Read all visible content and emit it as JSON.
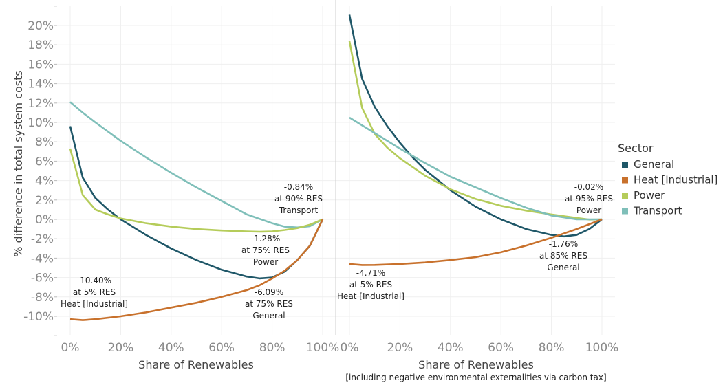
{
  "chart_data": {
    "type": "line",
    "ylabel": "% difference in total system costs",
    "yticks": [
      "-10%",
      "-8%",
      "-6%",
      "-4%",
      "-2%",
      "0%",
      "2%",
      "4%",
      "6%",
      "8%",
      "10%",
      "12%",
      "14%",
      "16%",
      "18%",
      "20%"
    ],
    "ylim": [
      -12,
      22
    ],
    "grid": true,
    "legend": {
      "title": "Sector",
      "placement": "right",
      "entries": [
        {
          "name": "General",
          "color": "#1f5768"
        },
        {
          "name": "Heat [Industrial]",
          "color": "#c8712c"
        },
        {
          "name": "Power",
          "color": "#b5cc5a"
        },
        {
          "name": "Transport",
          "color": "#7fbfb9"
        }
      ]
    },
    "panels": [
      {
        "xlabel": "Share of Renewables",
        "subtitle": "",
        "xticks": [
          "0%",
          "20%",
          "40%",
          "60%",
          "80%",
          "100%"
        ],
        "xlim": [
          0,
          100
        ],
        "series": [
          {
            "name": "Transport",
            "color": "#7fbfb9",
            "x": [
              0,
              5,
              10,
              20,
              30,
              40,
              50,
              60,
              70,
              80,
              85,
              90,
              95,
              100
            ],
            "values": [
              12.1,
              11.0,
              10.0,
              8.1,
              6.4,
              4.8,
              3.3,
              1.9,
              0.5,
              -0.4,
              -0.75,
              -0.84,
              -0.7,
              0
            ]
          },
          {
            "name": "General",
            "color": "#1f5768",
            "x": [
              0,
              5,
              10,
              15,
              20,
              25,
              30,
              40,
              50,
              60,
              70,
              75,
              80,
              85,
              90,
              95,
              100
            ],
            "values": [
              9.6,
              4.3,
              2.2,
              1.0,
              0.0,
              -0.8,
              -1.6,
              -3.0,
              -4.2,
              -5.2,
              -5.9,
              -6.09,
              -6.0,
              -5.4,
              -4.2,
              -2.7,
              0
            ]
          },
          {
            "name": "Power",
            "color": "#b5cc5a",
            "x": [
              0,
              5,
              10,
              15,
              20,
              30,
              40,
              50,
              60,
              70,
              75,
              80,
              85,
              90,
              95,
              100
            ],
            "values": [
              7.3,
              2.5,
              1.0,
              0.5,
              0.1,
              -0.4,
              -0.75,
              -1.0,
              -1.15,
              -1.25,
              -1.28,
              -1.25,
              -1.1,
              -0.9,
              -0.55,
              0
            ]
          },
          {
            "name": "Heat [Industrial]",
            "color": "#c8712c",
            "x": [
              0,
              5,
              10,
              20,
              30,
              40,
              50,
              60,
              70,
              75,
              80,
              85,
              90,
              95,
              100
            ],
            "values": [
              -10.3,
              -10.4,
              -10.3,
              -10.0,
              -9.6,
              -9.1,
              -8.6,
              -8.0,
              -7.3,
              -6.8,
              -6.1,
              -5.3,
              -4.2,
              -2.7,
              0
            ]
          }
        ],
        "annotations": [
          {
            "lines": [
              "-0.84%",
              "at 90% RES",
              "Transport"
            ]
          },
          {
            "lines": [
              "-1.28%",
              "at 75% RES",
              "Power"
            ]
          },
          {
            "lines": [
              "-10.40%",
              "at 5% RES",
              "Heat [Industrial]"
            ]
          },
          {
            "lines": [
              "-6.09%",
              "at 75% RES",
              "General"
            ]
          }
        ]
      },
      {
        "xlabel": "Share of Renewables",
        "subtitle": "[including negative environmental externalities via carbon tax]",
        "xticks": [
          "0%",
          "20%",
          "40%",
          "60%",
          "80%",
          "100%"
        ],
        "xlim": [
          0,
          100
        ],
        "series": [
          {
            "name": "General",
            "color": "#1f5768",
            "x": [
              0,
              5,
              10,
              15,
              20,
              25,
              30,
              40,
              50,
              60,
              70,
              80,
              85,
              90,
              95,
              100
            ],
            "values": [
              21.1,
              14.5,
              11.6,
              9.6,
              7.9,
              6.4,
              5.1,
              3.0,
              1.3,
              0.0,
              -1.0,
              -1.6,
              -1.76,
              -1.6,
              -1.0,
              0
            ]
          },
          {
            "name": "Power",
            "color": "#b5cc5a",
            "x": [
              0,
              5,
              10,
              15,
              20,
              30,
              40,
              50,
              60,
              70,
              80,
              90,
              95,
              100
            ],
            "values": [
              18.4,
              11.5,
              8.8,
              7.4,
              6.3,
              4.5,
              3.1,
              2.1,
              1.4,
              0.9,
              0.5,
              0.15,
              -0.02,
              0
            ]
          },
          {
            "name": "Transport",
            "color": "#7fbfb9",
            "x": [
              0,
              10,
              20,
              30,
              40,
              50,
              60,
              70,
              80,
              90,
              100
            ],
            "values": [
              10.5,
              8.9,
              7.3,
              5.8,
              4.4,
              3.3,
              2.2,
              1.2,
              0.4,
              0.0,
              0
            ]
          },
          {
            "name": "Heat [Industrial]",
            "color": "#c8712c",
            "x": [
              0,
              5,
              10,
              20,
              30,
              40,
              50,
              60,
              70,
              80,
              90,
              100
            ],
            "values": [
              -4.6,
              -4.71,
              -4.7,
              -4.6,
              -4.45,
              -4.2,
              -3.9,
              -3.4,
              -2.7,
              -1.9,
              -1.0,
              0
            ]
          }
        ],
        "annotations": [
          {
            "lines": [
              "-0.02%",
              "at 95% RES",
              "Power"
            ]
          },
          {
            "lines": [
              "-1.76%",
              "at 85% RES",
              "General"
            ]
          },
          {
            "lines": [
              "-4.71%",
              "at 5% RES",
              "Heat [Industrial]"
            ]
          }
        ]
      }
    ]
  }
}
